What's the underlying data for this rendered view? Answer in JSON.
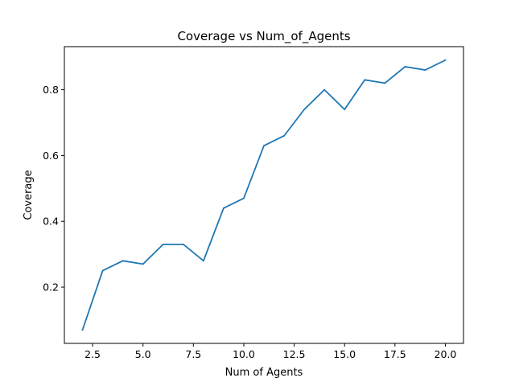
{
  "chart_data": {
    "type": "line",
    "title": "Coverage vs Num_of_Agents",
    "xlabel": "Num of Agents",
    "ylabel": "Coverage",
    "xlim": [
      1.1,
      20.9
    ],
    "ylim": [
      0.029,
      0.931
    ],
    "xticks": [
      2.5,
      5.0,
      7.5,
      10.0,
      12.5,
      15.0,
      17.5,
      20.0
    ],
    "xtick_labels": [
      "2.5",
      "5.0",
      "7.5",
      "10.0",
      "12.5",
      "15.0",
      "17.5",
      "20.0"
    ],
    "yticks": [
      0.2,
      0.4,
      0.6,
      0.8
    ],
    "ytick_labels": [
      "0.2",
      "0.4",
      "0.6",
      "0.8"
    ],
    "grid": false,
    "legend": "none",
    "series": [
      {
        "color": "#1f77b4",
        "x": [
          2,
          3,
          4,
          5,
          6,
          7,
          8,
          9,
          10,
          11,
          12,
          13,
          14,
          15,
          16,
          17,
          18,
          19,
          20
        ],
        "y": [
          0.07,
          0.25,
          0.28,
          0.27,
          0.33,
          0.33,
          0.28,
          0.44,
          0.47,
          0.63,
          0.66,
          0.74,
          0.8,
          0.74,
          0.83,
          0.82,
          0.87,
          0.86,
          0.89
        ]
      }
    ]
  }
}
